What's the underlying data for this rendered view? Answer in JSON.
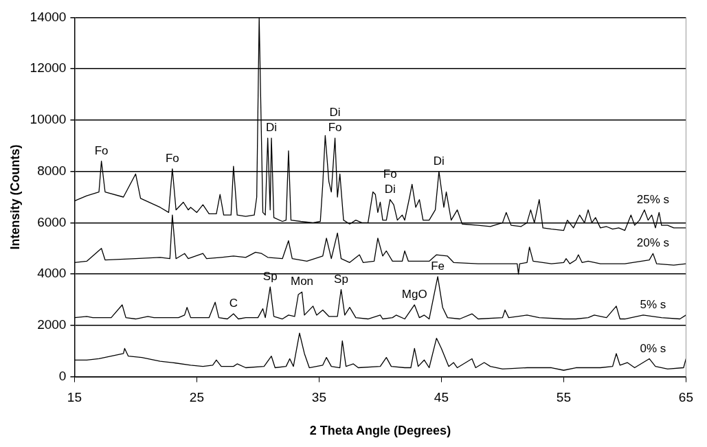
{
  "chart_data": {
    "type": "line",
    "xlabel": "2 Theta Angle (Degrees)",
    "ylabel": "Intensity (Counts)",
    "xlim": [
      15,
      65
    ],
    "xticks": [
      15,
      25,
      35,
      45,
      55,
      65
    ],
    "ylim": [
      0,
      14000
    ],
    "yticks": [
      0,
      2000,
      4000,
      6000,
      8000,
      10000,
      12000,
      14000
    ],
    "grid": "y",
    "legend": false,
    "marker": "none",
    "line_style": "solid",
    "series": [
      {
        "name": "25% s",
        "color": "#000000",
        "x": [
          15,
          16,
          17,
          17.2,
          17.5,
          19,
          20,
          20.4,
          22,
          22.7,
          23,
          23.3,
          23.9,
          24.3,
          24.5,
          25,
          25.5,
          26,
          26.6,
          26.9,
          27.2,
          27.8,
          28,
          28.3,
          29,
          29.7,
          29.9,
          30.1,
          30.4,
          30.6,
          30.8,
          31,
          31.1,
          31.3,
          32,
          32.3,
          32.5,
          32.7,
          33.5,
          34.5,
          35.1,
          35.3,
          35.5,
          35.8,
          36,
          36.3,
          36.5,
          36.7,
          37,
          37.5,
          38,
          38.5,
          39,
          39.4,
          39.6,
          39.8,
          40,
          40.2,
          40.5,
          40.8,
          41.1,
          41.4,
          41.8,
          42,
          42.4,
          42.6,
          42.9,
          43.2,
          43.5,
          44,
          44.5,
          44.8,
          45.2,
          45.4,
          45.8,
          46.3,
          46.7,
          48,
          49,
          50,
          50.3,
          50.7,
          51.5,
          52,
          52.3,
          52.6,
          53,
          53.3,
          54,
          55,
          55.3,
          55.8,
          56.3,
          56.7,
          57,
          57.3,
          57.6,
          58,
          58.5,
          59,
          59.5,
          60,
          60.5,
          60.8,
          61.2,
          61.6,
          61.9,
          62.2,
          62.5,
          62.8,
          63,
          63.5,
          64,
          65
        ],
        "values": [
          6850,
          7050,
          7200,
          8400,
          7200,
          7000,
          7900,
          6950,
          6600,
          6400,
          8100,
          6500,
          6800,
          6500,
          6600,
          6400,
          6700,
          6350,
          6350,
          7100,
          6300,
          6300,
          8200,
          6300,
          6250,
          6300,
          7000,
          14000,
          6400,
          6300,
          9300,
          6500,
          9300,
          6200,
          6050,
          6100,
          8800,
          6100,
          6050,
          6000,
          6050,
          7500,
          9400,
          7600,
          7200,
          9300,
          7000,
          7900,
          6100,
          5950,
          6100,
          6000,
          6000,
          7200,
          7100,
          6400,
          6800,
          6100,
          6100,
          6900,
          6700,
          6100,
          6300,
          6100,
          7000,
          7500,
          6600,
          6900,
          6100,
          6100,
          6500,
          8000,
          6600,
          7200,
          6100,
          6500,
          5950,
          5900,
          5850,
          6000,
          6400,
          5900,
          5850,
          6000,
          6500,
          6000,
          6900,
          5800,
          5750,
          5700,
          6100,
          5800,
          6300,
          6000,
          6500,
          6000,
          6200,
          5800,
          5850,
          5750,
          5800,
          5700,
          6300,
          5900,
          6100,
          6500,
          6100,
          6300,
          5800,
          6400,
          5900,
          5900,
          5800,
          5800
        ]
      },
      {
        "name": "20% s",
        "color": "#000000",
        "x": [
          15,
          16,
          17.2,
          17.5,
          20,
          22,
          22.8,
          23,
          23.3,
          24,
          24.3,
          25.5,
          25.8,
          27,
          28,
          29,
          29.8,
          30.3,
          30.8,
          32,
          32.5,
          32.8,
          34,
          35.3,
          35.6,
          36,
          36.5,
          36.8,
          37.5,
          38.3,
          38.6,
          39.5,
          39.8,
          40.2,
          40.5,
          41,
          41.8,
          42,
          42.3,
          44,
          44.6,
          45.5,
          46,
          48,
          50,
          51.2,
          51.3,
          51.4,
          52,
          52.2,
          52.5,
          54,
          55,
          55.2,
          55.5,
          56,
          56.2,
          56.5,
          57,
          58,
          60,
          62,
          62.3,
          62.6,
          64,
          65
        ],
        "values": [
          4450,
          4500,
          5000,
          4550,
          4600,
          4650,
          4600,
          6300,
          4600,
          4800,
          4600,
          4800,
          4600,
          4650,
          4700,
          4650,
          4850,
          4800,
          4650,
          4600,
          5300,
          4600,
          4500,
          4700,
          5400,
          4600,
          5600,
          4600,
          4450,
          4750,
          4450,
          4500,
          5400,
          4700,
          4900,
          4500,
          4500,
          4900,
          4500,
          4500,
          4750,
          4700,
          4450,
          4400,
          4400,
          4400,
          4000,
          4400,
          4450,
          5050,
          4500,
          4400,
          4450,
          4600,
          4400,
          4550,
          4750,
          4450,
          4500,
          4400,
          4400,
          4550,
          4800,
          4400,
          4350,
          4400
        ]
      },
      {
        "name": "5% s",
        "color": "#000000",
        "x": [
          15,
          16,
          16.5,
          18,
          18.9,
          19.2,
          20,
          21,
          21.5,
          22,
          23.5,
          24,
          24.2,
          24.5,
          26,
          26.5,
          26.8,
          27.5,
          28,
          28.4,
          29,
          30,
          30.4,
          30.6,
          31,
          31.3,
          32,
          32.5,
          33,
          33.3,
          33.6,
          33.8,
          34.5,
          34.8,
          35.3,
          35.8,
          36.5,
          36.8,
          37.1,
          37.5,
          38,
          39,
          40,
          40.2,
          41,
          41.3,
          42,
          42.8,
          43.2,
          43.6,
          44,
          44.7,
          45.1,
          45.5,
          46.5,
          47.5,
          48,
          50,
          50.2,
          50.5,
          52,
          53,
          55,
          56,
          57,
          57.5,
          58.5,
          59.3,
          59.6,
          60,
          61.5,
          63,
          64.5,
          65
        ],
        "values": [
          2300,
          2350,
          2300,
          2300,
          2800,
          2300,
          2250,
          2350,
          2300,
          2300,
          2300,
          2400,
          2700,
          2300,
          2300,
          2900,
          2300,
          2250,
          2450,
          2250,
          2300,
          2300,
          2650,
          2300,
          3500,
          2350,
          2250,
          2400,
          2350,
          3200,
          3300,
          2400,
          2750,
          2400,
          2600,
          2350,
          2350,
          3400,
          2400,
          2700,
          2300,
          2250,
          2400,
          2250,
          2300,
          2400,
          2250,
          2800,
          2300,
          2400,
          2250,
          3900,
          2700,
          2300,
          2250,
          2450,
          2250,
          2300,
          2600,
          2300,
          2400,
          2300,
          2250,
          2250,
          2300,
          2400,
          2300,
          2750,
          2250,
          2250,
          2400,
          2300,
          2250,
          2400
        ]
      },
      {
        "name": "0% s",
        "color": "#000000",
        "x": [
          15,
          16,
          17,
          18,
          19,
          19.1,
          19.4,
          20.5,
          22,
          23,
          24.5,
          25.5,
          26.3,
          26.6,
          27,
          28,
          28.3,
          29,
          30.5,
          31.1,
          31.4,
          32.3,
          32.6,
          32.9,
          33.4,
          33.8,
          34.2,
          35.3,
          35.6,
          36,
          36.7,
          36.9,
          37.2,
          37.8,
          38.2,
          40,
          40.5,
          40.9,
          42,
          42.5,
          42.8,
          43.1,
          43.6,
          44,
          44.6,
          45,
          45.6,
          46,
          46.3,
          47.5,
          47.8,
          48.5,
          49,
          50,
          52,
          54,
          55,
          56,
          58,
          59,
          59.3,
          59.6,
          60.2,
          60.8,
          62,
          62.5,
          63.5,
          64.8,
          65
        ],
        "values": [
          650,
          650,
          700,
          800,
          900,
          1100,
          800,
          750,
          600,
          550,
          450,
          400,
          450,
          650,
          400,
          400,
          500,
          350,
          400,
          800,
          350,
          400,
          700,
          400,
          1700,
          900,
          350,
          450,
          750,
          400,
          350,
          1400,
          400,
          500,
          350,
          400,
          750,
          400,
          350,
          350,
          1100,
          400,
          650,
          350,
          1500,
          1100,
          400,
          550,
          350,
          700,
          350,
          550,
          400,
          300,
          350,
          350,
          250,
          350,
          350,
          400,
          900,
          450,
          550,
          350,
          700,
          400,
          300,
          350,
          700
        ]
      }
    ],
    "annotations": [
      {
        "text": "Fo",
        "x": 17.2,
        "y": 8400
      },
      {
        "text": "Fo",
        "x": 23,
        "y": 8100
      },
      {
        "text": "Di",
        "x": 31.1,
        "y": 9300
      },
      {
        "text": "Fo",
        "x": 36.3,
        "y": 9300
      },
      {
        "text": "Di",
        "x": 36.3,
        "y": 9300
      },
      {
        "text": "Di",
        "x": 40.8,
        "y": 6900
      },
      {
        "text": "Fo",
        "x": 40.8,
        "y": 6900
      },
      {
        "text": "Di",
        "x": 44.8,
        "y": 8000
      },
      {
        "text": "C",
        "x": 28,
        "y": 2450
      },
      {
        "text": "Sp",
        "x": 31,
        "y": 3500
      },
      {
        "text": "Mon",
        "x": 33.6,
        "y": 3300
      },
      {
        "text": "Sp",
        "x": 36.8,
        "y": 3400
      },
      {
        "text": "MgO",
        "x": 42.8,
        "y": 2800
      },
      {
        "text": "Fe",
        "x": 44.7,
        "y": 3900
      }
    ]
  }
}
